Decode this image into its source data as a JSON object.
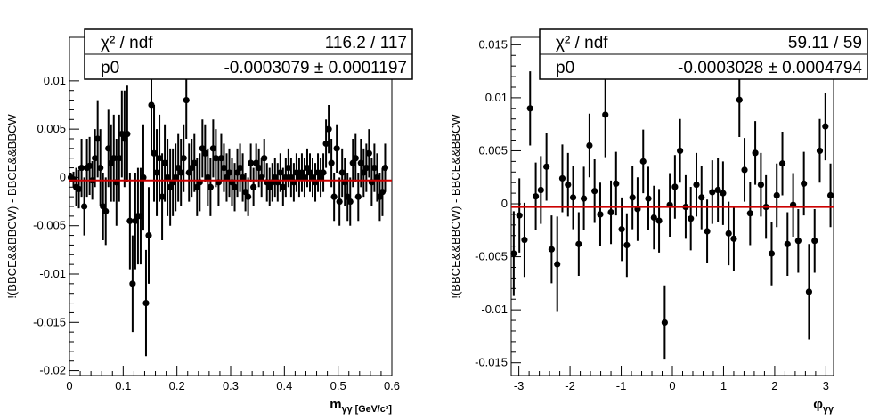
{
  "chart_data": [
    {
      "type": "scatter",
      "title": "",
      "xlabel": "m_γγ [GeV/c²]",
      "ylabel": "!(BBCE&&BBCW) - BBCE&&BBCW",
      "xlim": [
        0,
        0.6
      ],
      "ylim": [
        -0.0205,
        0.0145
      ],
      "xticks": [
        "0",
        "0.1",
        "0.2",
        "0.3",
        "0.4",
        "0.5",
        "0.6"
      ],
      "yticks": [
        "-0.02",
        "-0.015",
        "-0.01",
        "-0.005",
        "0",
        "0.005",
        "0.01"
      ],
      "grid": false,
      "stats_box": {
        "row1_label": "χ² / ndf",
        "row1_value": "116.2 / 117",
        "row2_label": "p0",
        "row2_value": "-0.0003079 ± 0.0001197"
      },
      "fit": {
        "type": "constant",
        "p0": -0.0003079,
        "color": "#cc0000"
      },
      "series": [
        {
          "x": [
            0.0025,
            0.0075,
            0.0125,
            0.0175,
            0.0225,
            0.0275,
            0.0325,
            0.0375,
            0.0425,
            0.0475,
            0.0525,
            0.0575,
            0.0625,
            0.0675,
            0.0725,
            0.0775,
            0.0825,
            0.0875,
            0.0925,
            0.0975,
            0.1025,
            0.1075,
            0.1125,
            0.1175,
            0.1225,
            0.1275,
            0.1325,
            0.1375,
            0.1425,
            0.1475,
            0.1525,
            0.1575,
            0.1625,
            0.1675,
            0.1725,
            0.1775,
            0.1825,
            0.1875,
            0.1925,
            0.1975,
            0.2025,
            0.2075,
            0.2125,
            0.2175,
            0.2225,
            0.2275,
            0.2325,
            0.2375,
            0.2425,
            0.2475,
            0.2525,
            0.2575,
            0.2625,
            0.2675,
            0.2725,
            0.2775,
            0.2825,
            0.2875,
            0.2925,
            0.2975,
            0.3025,
            0.3075,
            0.3125,
            0.3175,
            0.3225,
            0.3275,
            0.3325,
            0.3375,
            0.3425,
            0.3475,
            0.3525,
            0.3575,
            0.3625,
            0.3675,
            0.3725,
            0.3775,
            0.3825,
            0.3875,
            0.3925,
            0.3975,
            0.4025,
            0.4075,
            0.4125,
            0.4175,
            0.4225,
            0.4275,
            0.4325,
            0.4375,
            0.4425,
            0.4475,
            0.4525,
            0.4575,
            0.4625,
            0.4675,
            0.4725,
            0.4775,
            0.4825,
            0.4875,
            0.4925,
            0.4975,
            0.5025,
            0.5075,
            0.5125,
            0.5175,
            0.5225,
            0.5275,
            0.5325,
            0.5375,
            0.5425,
            0.5475,
            0.5525,
            0.5575,
            0.5625,
            0.5675,
            0.5725,
            0.5775,
            0.5825,
            0.5875
          ],
          "y": [
            0.0,
            -0.0002,
            -0.001,
            -0.0012,
            0.001,
            -0.003,
            0.001,
            0.0012,
            -0.0003,
            0.002,
            0.004,
            0.001,
            -0.003,
            -0.0035,
            0.003,
            0.0015,
            0.002,
            -0.0005,
            0.002,
            0.0045,
            0.004,
            0.0045,
            -0.0045,
            -0.011,
            -0.0045,
            -0.004,
            -0.004,
            0.0,
            -0.013,
            -0.006,
            0.0075,
            0.0025,
            0.0005,
            0.002,
            -0.002,
            0.0015,
            0.0,
            -0.001,
            -0.0005,
            0.0,
            0.001,
            0.0005,
            0.002,
            0.008,
            0.0005,
            0.001,
            0.0015,
            -0.001,
            -0.0005,
            0.003,
            0.0025,
            0.0,
            -0.001,
            0.003,
            0.002,
            -0.0005,
            0.002,
            0.001,
            0.0,
            0.0005,
            -0.0005,
            -0.001,
            0.0005,
            0.001,
            0.0,
            -0.0015,
            -0.002,
            0.0015,
            -0.001,
            0.0015,
            0.001,
            0.0,
            0.002,
            -0.0005,
            -0.001,
            -0.0005,
            0.0,
            -0.0005,
            0.0005,
            -0.001,
            0.0,
            0.001,
            0.0,
            -0.0005,
            0.0005,
            0.0,
            0.0005,
            0.0,
            0.001,
            0.0005,
            0.0,
            -0.0005,
            0.0005,
            0.0,
            0.0005,
            0.0035,
            0.005,
            0.0015,
            -0.002,
            0.003,
            -0.0025,
            0.0005,
            -0.0005,
            -0.002,
            -0.0025,
            0.0015,
            0.002,
            -0.002,
            0.0015,
            0.0005,
            0.001,
            0.0025,
            -0.0005,
            0.001,
            0.0,
            -0.002,
            -0.0015,
            0.001
          ],
          "yerr": [
            0.0005,
            0.0008,
            0.002,
            0.002,
            0.003,
            0.003,
            0.003,
            0.003,
            0.002,
            0.003,
            0.004,
            0.004,
            0.0035,
            0.0035,
            0.004,
            0.004,
            0.0045,
            0.0045,
            0.0045,
            0.0045,
            0.005,
            0.005,
            0.005,
            0.005,
            0.005,
            0.005,
            0.005,
            0.0055,
            0.0055,
            0.005,
            0.005,
            0.005,
            0.0045,
            0.0045,
            0.0045,
            0.004,
            0.004,
            0.004,
            0.0035,
            0.0035,
            0.0035,
            0.0035,
            0.0035,
            0.004,
            0.003,
            0.003,
            0.003,
            0.003,
            0.003,
            0.003,
            0.003,
            0.003,
            0.003,
            0.003,
            0.003,
            0.0025,
            0.0025,
            0.0025,
            0.0025,
            0.0025,
            0.0025,
            0.0025,
            0.0025,
            0.0025,
            0.0025,
            0.002,
            0.002,
            0.002,
            0.002,
            0.002,
            0.002,
            0.002,
            0.002,
            0.002,
            0.002,
            0.002,
            0.002,
            0.002,
            0.002,
            0.002,
            0.002,
            0.002,
            0.002,
            0.002,
            0.002,
            0.002,
            0.002,
            0.002,
            0.002,
            0.002,
            0.002,
            0.002,
            0.002,
            0.002,
            0.002,
            0.0025,
            0.0025,
            0.0025,
            0.0025,
            0.0025,
            0.0025,
            0.0025,
            0.0025,
            0.0025,
            0.0025,
            0.0025,
            0.0025,
            0.0025,
            0.0025,
            0.0025,
            0.0025,
            0.0025,
            0.0025,
            0.0025,
            0.0025,
            0.0025,
            0.0025,
            0.0025
          ]
        }
      ]
    },
    {
      "type": "scatter",
      "title": "",
      "xlabel": "φ_γγ",
      "ylabel": "!(BBCE&&BBCW) - BBCE&&BBCW",
      "xlim": [
        -3.15,
        3.15
      ],
      "ylim": [
        -0.0162,
        0.0157
      ],
      "xticks": [
        "-3",
        "-2",
        "-1",
        "0",
        "1",
        "2",
        "3"
      ],
      "yticks": [
        "-0.015",
        "-0.01",
        "-0.005",
        "0",
        "0.005",
        "0.01",
        "0.015"
      ],
      "grid": false,
      "stats_box": {
        "row1_label": "χ² / ndf",
        "row1_value": "59.11 / 59",
        "row2_label": "p0",
        "row2_value": "-0.0003028 ± 0.0004794"
      },
      "fit": {
        "type": "constant",
        "p0": -0.0003028,
        "color": "#cc0000"
      },
      "series": [
        {
          "x": [
            -3.1,
            -2.99,
            -2.89,
            -2.78,
            -2.67,
            -2.57,
            -2.46,
            -2.36,
            -2.25,
            -2.15,
            -2.04,
            -1.94,
            -1.83,
            -1.73,
            -1.62,
            -1.52,
            -1.41,
            -1.31,
            -1.2,
            -1.1,
            -0.99,
            -0.89,
            -0.78,
            -0.68,
            -0.57,
            -0.47,
            -0.36,
            -0.26,
            -0.15,
            -0.05,
            0.05,
            0.15,
            0.26,
            0.36,
            0.47,
            0.57,
            0.68,
            0.78,
            0.89,
            0.99,
            1.1,
            1.2,
            1.31,
            1.41,
            1.52,
            1.62,
            1.73,
            1.83,
            1.94,
            2.04,
            2.15,
            2.25,
            2.36,
            2.46,
            2.57,
            2.67,
            2.78,
            2.88,
            2.99,
            3.09
          ],
          "y": [
            -0.0047,
            -0.0011,
            -0.0034,
            0.009,
            0.0007,
            0.0013,
            0.0035,
            -0.0043,
            -0.0057,
            0.0024,
            0.0018,
            0.0006,
            -0.0038,
            0.0005,
            0.0055,
            0.0012,
            -0.001,
            0.0084,
            -0.0008,
            0.0019,
            -0.0024,
            -0.0039,
            0.0006,
            -0.0005,
            0.004,
            0.0005,
            -0.0013,
            -0.0016,
            -0.0112,
            -0.0001,
            0.0016,
            0.005,
            -0.0003,
            -0.0014,
            0.0018,
            0.0006,
            -0.0026,
            0.0011,
            0.0013,
            0.001,
            -0.0028,
            -0.0033,
            0.0098,
            0.0032,
            -0.0009,
            0.0048,
            0.0018,
            -0.0003,
            -0.0047,
            0.0008,
            0.0038,
            -0.0038,
            -0.0001,
            -0.0035,
            0.0019,
            -0.0083,
            -0.0035,
            0.005,
            0.0073,
            0.0008
          ],
          "yerr": [
            0.004,
            0.0035,
            0.0035,
            0.0035,
            0.0032,
            0.0032,
            0.0032,
            0.0032,
            0.0045,
            0.0032,
            0.003,
            0.003,
            0.003,
            0.003,
            0.003,
            0.003,
            0.003,
            0.004,
            0.003,
            0.003,
            0.003,
            0.003,
            0.003,
            0.003,
            0.003,
            0.003,
            0.003,
            0.003,
            0.0035,
            0.003,
            0.003,
            0.003,
            0.003,
            0.003,
            0.003,
            0.003,
            0.003,
            0.003,
            0.003,
            0.003,
            0.003,
            0.003,
            0.0035,
            0.003,
            0.003,
            0.003,
            0.003,
            0.003,
            0.003,
            0.003,
            0.003,
            0.003,
            0.003,
            0.003,
            0.003,
            0.0045,
            0.003,
            0.003,
            0.0032,
            0.003
          ]
        }
      ]
    }
  ]
}
